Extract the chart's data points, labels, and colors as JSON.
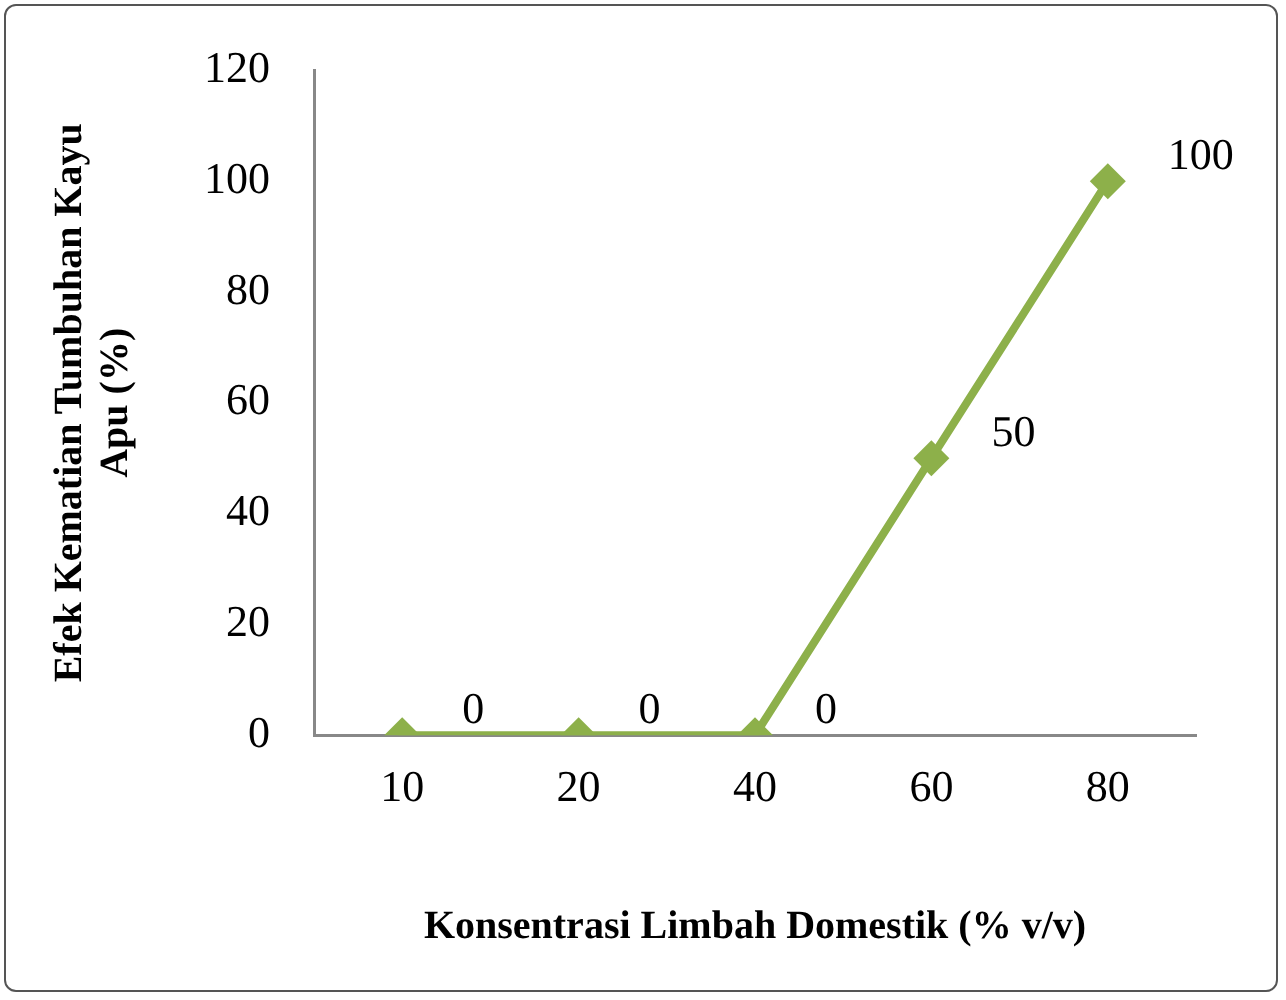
{
  "chart_data": {
    "type": "line",
    "xlabel": "Konsentrasi Limbah Domestik (% v/v)",
    "ylabel": "Efek Kematian Tumbuhan Kayu Apu (%)",
    "categories": [
      "10",
      "20",
      "40",
      "60",
      "80"
    ],
    "series": [
      {
        "color": "#8db04a",
        "values": [
          0,
          0,
          0,
          50,
          100
        ]
      }
    ],
    "ylim": [
      0,
      120
    ],
    "yticks": [
      0,
      20,
      40,
      60,
      80,
      100,
      120
    ],
    "grid": false,
    "legend": false,
    "marker": "diamond",
    "line_style": "solid",
    "data_labels": true
  }
}
